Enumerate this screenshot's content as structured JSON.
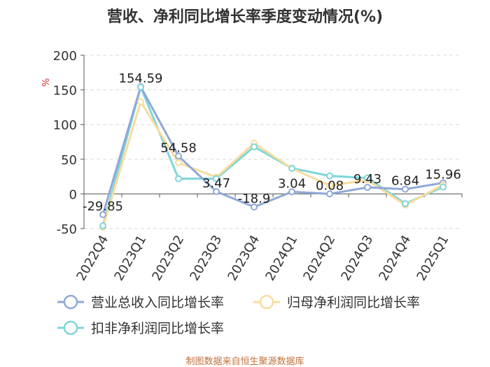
{
  "chart_data": {
    "type": "line",
    "title": "营收、净利同比增长率季度变动情况(%)",
    "ylabel": "%",
    "xlabel": "",
    "ylim": [
      -50,
      200
    ],
    "yticks": [
      "200",
      "150",
      "100",
      "50",
      "0",
      "-50"
    ],
    "ytick_values": [
      200,
      150,
      100,
      50,
      0,
      -50
    ],
    "grid": true,
    "legend_position": "bottom",
    "categories": [
      "2022Q4",
      "2023Q1",
      "2023Q2",
      "2023Q3",
      "2023Q4",
      "2024Q1",
      "2024Q2",
      "2024Q3",
      "2024Q4",
      "2025Q1"
    ],
    "series": [
      {
        "name": "营业总收入同比增长率",
        "color": "#8fa8d8",
        "values": [
          -29.85,
          154.59,
          54.58,
          3.47,
          -18.9,
          3.04,
          0.08,
          9.43,
          6.84,
          15.96
        ],
        "labels": [
          "-29.85",
          "154.59",
          "54.58",
          "3.47",
          "-18.9",
          "3.04",
          "0.08",
          "9.43",
          "6.84",
          "15.96"
        ]
      },
      {
        "name": "归母净利润同比增长率",
        "color": "#f8dc9c",
        "values": [
          -48,
          133,
          45,
          24,
          73,
          37,
          12,
          20,
          -16,
          13
        ]
      },
      {
        "name": "扣非净利润同比增长率",
        "color": "#7fd6d9",
        "values": [
          -46,
          154,
          22,
          22,
          68,
          37,
          26,
          23,
          -14,
          10
        ]
      }
    ]
  },
  "footer": {
    "source": "制图数据来自恒生聚源数据库"
  }
}
